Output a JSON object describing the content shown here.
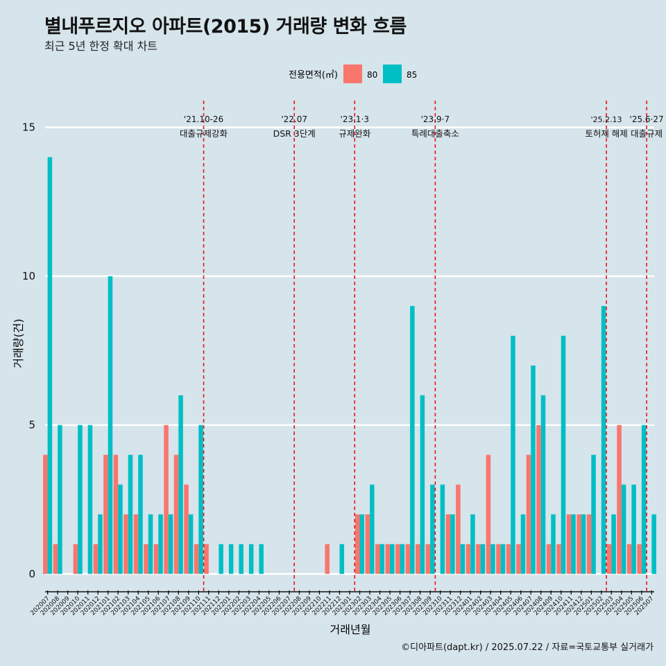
{
  "title": "별내푸르지오 아파트(2015) 거래량 변화 흐름",
  "subtitle": "최근 5년 한정 확대 차트",
  "caption": "©디아파트(dapt.kr) / 2025.07.22 / 자료=국토교통부 실거래가",
  "colors": {
    "background": "#d6e4eb",
    "series_80": "#f8766d",
    "series_85": "#00bfc4",
    "event_line": "#e8141d",
    "grid": "#ffffff"
  },
  "chart_data": {
    "type": "bar",
    "xlabel": "거래년월",
    "ylabel": "거래량(건)",
    "ylim": [
      -0.6,
      15.9
    ],
    "yticks": [
      0,
      5,
      10,
      15
    ],
    "grid": true,
    "legend": {
      "title": "전용면적(㎡)",
      "position": "top"
    },
    "categories": [
      "202007",
      "202008",
      "202009",
      "202010",
      "202011",
      "202012",
      "202101",
      "202102",
      "202103",
      "202104",
      "202105",
      "202106",
      "202107",
      "202108",
      "202109",
      "202110",
      "202111",
      "202112",
      "202201",
      "202202",
      "202203",
      "202204",
      "202205",
      "202206",
      "202207",
      "202208",
      "202209",
      "202210",
      "202211",
      "202212",
      "202301",
      "202302",
      "202303",
      "202304",
      "202305",
      "202306",
      "202307",
      "202308",
      "202309",
      "202310",
      "202311",
      "202312",
      "202401",
      "202402",
      "202403",
      "202404",
      "202405",
      "202406",
      "202407",
      "202408",
      "202409",
      "202410",
      "202411",
      "202412",
      "202501",
      "202502",
      "202503",
      "202504",
      "202505",
      "202506",
      "202507"
    ],
    "series": [
      {
        "name": "80",
        "values": [
          4,
          1,
          0,
          1,
          0,
          1,
          4,
          4,
          2,
          2,
          1,
          1,
          5,
          4,
          3,
          1,
          1,
          0,
          0,
          0,
          0,
          0,
          0,
          0,
          0,
          0,
          0,
          0,
          1,
          0,
          0,
          2,
          2,
          1,
          1,
          1,
          1,
          1,
          1,
          0,
          2,
          3,
          1,
          1,
          4,
          1,
          1,
          1,
          4,
          5,
          1,
          1,
          2,
          2,
          2,
          0,
          1,
          5,
          1,
          1,
          0
        ]
      },
      {
        "name": "85",
        "values": [
          14,
          5,
          0,
          5,
          5,
          2,
          10,
          3,
          4,
          4,
          2,
          2,
          2,
          6,
          2,
          5,
          0,
          1,
          1,
          1,
          1,
          1,
          0,
          0,
          0,
          0,
          0,
          0,
          0,
          1,
          0,
          2,
          3,
          1,
          1,
          1,
          9,
          6,
          3,
          3,
          2,
          1,
          2,
          1,
          1,
          1,
          8,
          2,
          7,
          6,
          2,
          8,
          2,
          2,
          4,
          9,
          2,
          3,
          3,
          5,
          2
        ]
      }
    ],
    "annotations": [
      {
        "after": "202110",
        "date": "'21.10-26",
        "label": "대출규제강화"
      },
      {
        "after": "202207",
        "date": "'22.07",
        "label": "DSR 3단계"
      },
      {
        "after": "202301",
        "date": "'23.1·3",
        "label": "규제완화"
      },
      {
        "after": "202309",
        "date": "'23.9·7",
        "label": "특례대출축소"
      },
      {
        "after": "202502",
        "date": "'25.2.13",
        "label": "토허제 해제"
      },
      {
        "after": "202506",
        "date": "'25.6·27",
        "label": "대출규제"
      }
    ]
  }
}
